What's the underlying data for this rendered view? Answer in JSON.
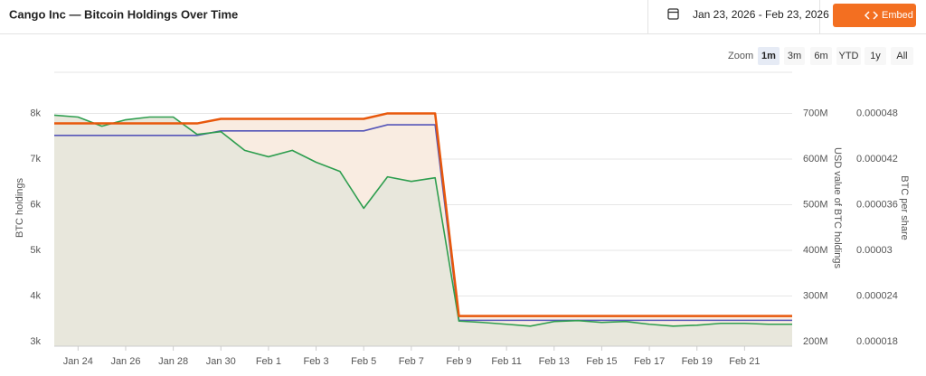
{
  "header": {
    "title": "Cango Inc — Bitcoin Holdings Over Time",
    "date_range": "Jan 23, 2026 - Feb 23, 2026",
    "embed_button": "Embed"
  },
  "zoom": {
    "label": "Zoom",
    "options": [
      "1m",
      "3m",
      "6m",
      "YTD",
      "1y",
      "All"
    ],
    "selected": 0
  },
  "chart_data": {
    "type": "line",
    "grid": true,
    "categories": [
      null,
      "Jan 24",
      null,
      "Jan 26",
      null,
      "Jan 28",
      null,
      "Jan 30",
      null,
      "Feb 1",
      null,
      "Feb 3",
      null,
      "Feb 5",
      null,
      "Feb 7",
      null,
      "Feb 9",
      null,
      "Feb 11",
      null,
      "Feb 13",
      null,
      "Feb 15",
      null,
      "Feb 17",
      null,
      "Feb 19",
      null,
      "Feb 21",
      null,
      null
    ],
    "ylabel": "BTC holdings",
    "y2label": "USD value of BTC holdings",
    "y3label": "BTC per share",
    "ylim": [
      2900,
      8900
    ],
    "yticks": [
      {
        "value": 3000,
        "label": "3k"
      },
      {
        "value": 4000,
        "label": "4k"
      },
      {
        "value": 5000,
        "label": "5k"
      },
      {
        "value": 6000,
        "label": "6k"
      },
      {
        "value": 7000,
        "label": "7k"
      },
      {
        "value": 8000,
        "label": "8k"
      }
    ],
    "y2lim": [
      190000000,
      790000000
    ],
    "y2ticks": [
      {
        "value": 200000000,
        "label": "200M"
      },
      {
        "value": 300000000,
        "label": "300M"
      },
      {
        "value": 400000000,
        "label": "400M"
      },
      {
        "value": 500000000,
        "label": "500M"
      },
      {
        "value": 600000000,
        "label": "600M"
      },
      {
        "value": 700000000,
        "label": "700M"
      }
    ],
    "y3lim": [
      1.74e-05,
      5.34e-05
    ],
    "y3ticks": [
      1.8e-05,
      2.4e-05,
      3e-05,
      3.6e-05,
      4.2e-05,
      4.8e-05
    ],
    "series": [
      {
        "color": "#e8580c",
        "fill": "#f9ece1",
        "axis": "y",
        "values": [
          7780,
          7780,
          7780,
          7780,
          7780,
          7780,
          7780,
          7880,
          7880,
          7880,
          7880,
          7880,
          7880,
          7880,
          8000,
          8000,
          8000,
          3560,
          3560,
          3560,
          3560,
          3560,
          3560,
          3560,
          3560,
          3560,
          3560,
          3560,
          3560,
          3560,
          3560,
          3560
        ]
      },
      {
        "color": "#2e9e4f",
        "fill": "#e8e7dc",
        "axis": "y2",
        "values": [
          696000000,
          692000000,
          672000000,
          686000000,
          692000000,
          692000000,
          654000000,
          660000000,
          619000000,
          605000000,
          619000000,
          593000000,
          573000000,
          492000000,
          561000000,
          551000000,
          559000000,
          245000000,
          242000000,
          238000000,
          234000000,
          244000000,
          246000000,
          242000000,
          244000000,
          238000000,
          234000000,
          236000000,
          240000000,
          240000000,
          238000000,
          238000000
        ]
      },
      {
        "color": "#5555b8",
        "axis": "y3",
        "values": [
          4.51e-05,
          4.51e-05,
          4.51e-05,
          4.51e-05,
          4.51e-05,
          4.51e-05,
          4.51e-05,
          4.57e-05,
          4.57e-05,
          4.57e-05,
          4.57e-05,
          4.57e-05,
          4.57e-05,
          4.57e-05,
          4.65e-05,
          4.65e-05,
          4.65e-05,
          2.08e-05,
          2.08e-05,
          2.08e-05,
          2.08e-05,
          2.08e-05,
          2.08e-05,
          2.08e-05,
          2.08e-05,
          2.08e-05,
          2.08e-05,
          2.08e-05,
          2.08e-05,
          2.08e-05,
          2.08e-05,
          2.08e-05
        ]
      }
    ]
  }
}
